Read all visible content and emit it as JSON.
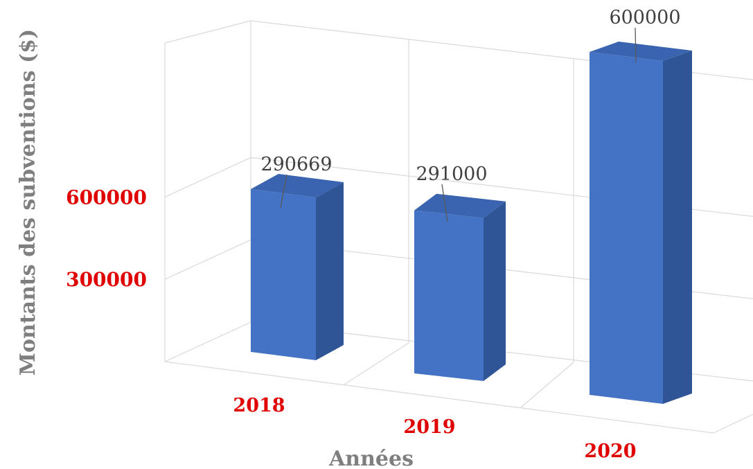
{
  "chart_data": {
    "type": "bar",
    "categories": [
      "2018",
      "2019",
      "2020"
    ],
    "values": [
      290669,
      291000,
      600000
    ],
    "data_labels": [
      "290669",
      "291000",
      "600000"
    ],
    "title": "",
    "xlabel": "Années",
    "ylabel": "Montants des subventions ($)",
    "ylim": [
      0,
      600000
    ],
    "yticks": [
      "300000",
      "600000"
    ],
    "grid": true,
    "three_d": true,
    "legend": "none"
  },
  "colors": {
    "bar_front": "#4472c4",
    "bar_side": "#2f5597",
    "bar_top": "#3a64b0",
    "tick_labels": "#e10000",
    "axis_titles": "#7f7f7f",
    "data_labels": "#404040",
    "gridlines": "#d9d9d9"
  }
}
